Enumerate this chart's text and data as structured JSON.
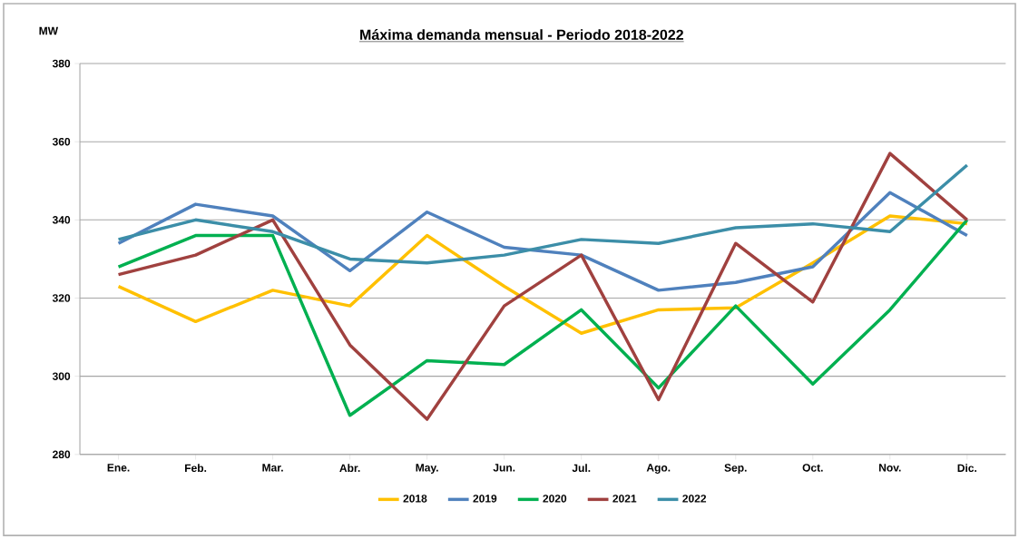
{
  "chart_data": {
    "type": "line",
    "title": "Máxima demanda mensual - Periodo 2018-2022",
    "ylabel": "MW",
    "categories": [
      "Ene.",
      "Feb.",
      "Mar.",
      "Abr.",
      "May.",
      "Jun.",
      "Jul.",
      "Ago.",
      "Sep.",
      "Oct.",
      "Nov.",
      "Dic."
    ],
    "series": [
      {
        "name": "2018",
        "color": "#ffc000",
        "values": [
          323,
          314,
          322,
          318,
          336,
          323,
          311,
          317,
          317.5,
          329,
          341,
          339
        ]
      },
      {
        "name": "2019",
        "color": "#4f81bd",
        "values": [
          334,
          344,
          341,
          327,
          342,
          333,
          331,
          322,
          324,
          328,
          347,
          336
        ]
      },
      {
        "name": "2020",
        "color": "#00b050",
        "values": [
          328,
          336,
          336,
          290,
          304,
          303,
          317,
          297,
          318,
          298,
          317,
          340
        ]
      },
      {
        "name": "2021",
        "color": "#a0413f",
        "values": [
          326,
          331,
          340,
          308,
          289,
          318,
          331,
          294,
          334,
          319,
          357,
          340
        ]
      },
      {
        "name": "2022",
        "color": "#3c8ea8",
        "values": [
          335,
          340,
          337,
          330,
          329,
          331,
          335,
          334,
          338,
          339,
          337,
          354
        ]
      }
    ],
    "ylim": [
      280,
      380
    ],
    "yticks": [
      280,
      300,
      320,
      340,
      360,
      380
    ],
    "grid": "y",
    "legend": "bottom",
    "marker": "none",
    "line_style": "solid"
  }
}
